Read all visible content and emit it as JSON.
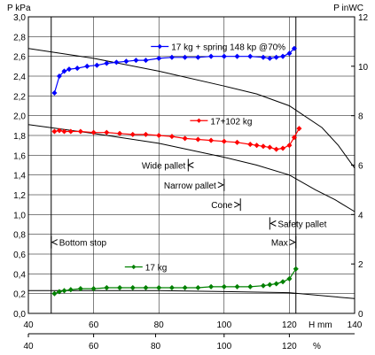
{
  "chart_data": {
    "type": "line",
    "left_axis": {
      "label": "P  kPa",
      "ylim": [
        0,
        3.0
      ],
      "ticks": [
        "0,0",
        "0,2",
        "0,4",
        "0,6",
        "0,8",
        "1,0",
        "1,2",
        "1,4",
        "1,6",
        "1,8",
        "2,0",
        "2,2",
        "2,4",
        "2,6",
        "2,8",
        "3,0"
      ]
    },
    "right_axis": {
      "label": "P inWC",
      "ylim": [
        0,
        12
      ],
      "ticks": [
        "0",
        "2",
        "4",
        "6",
        "8",
        "10",
        "12"
      ]
    },
    "x_axis_top": {
      "label": "H mm",
      "xlim": [
        40,
        140
      ],
      "ticks": [
        "40",
        "60",
        "80",
        "100",
        "120",
        "140"
      ]
    },
    "x_axis_bottom": {
      "label": "%",
      "ticks": [
        {
          "text": "40",
          "h": 40
        },
        {
          "text": "60",
          "h": 60
        },
        {
          "text": "80",
          "h": 79
        },
        {
          "text": "100",
          "h": 100
        },
        {
          "text": "120",
          "h": 120
        }
      ]
    },
    "grid": true,
    "legend_style": "inline labels next to series",
    "vlines": [
      {
        "name": "bottom-stop-line",
        "h": 47
      },
      {
        "name": "max-line",
        "h": 122
      }
    ],
    "series": [
      {
        "name": "17 kg + spring 148 kp @70%",
        "color": "#0000ff",
        "legend_h": 83,
        "legend_p": 2.7,
        "x": [
          48,
          49.5,
          51,
          52.5,
          55,
          58,
          61,
          64,
          67,
          70,
          73,
          76,
          80,
          84,
          88,
          92,
          96,
          100,
          104,
          108,
          112,
          114,
          116,
          118,
          120,
          121.5
        ],
        "y": [
          2.23,
          2.4,
          2.45,
          2.47,
          2.48,
          2.5,
          2.51,
          2.53,
          2.54,
          2.55,
          2.56,
          2.56,
          2.58,
          2.59,
          2.59,
          2.59,
          2.6,
          2.6,
          2.6,
          2.6,
          2.59,
          2.58,
          2.59,
          2.6,
          2.63,
          2.68
        ]
      },
      {
        "name": "17+102 kg",
        "color": "#ff0000",
        "legend_h": 95,
        "legend_p": 1.95,
        "x": [
          48,
          49.5,
          51,
          53,
          56,
          60,
          64,
          68,
          72,
          76,
          80,
          84,
          88,
          92,
          96,
          100,
          104,
          108,
          110,
          112,
          114,
          116,
          118,
          120,
          121.5,
          123
        ],
        "y": [
          1.84,
          1.85,
          1.84,
          1.84,
          1.84,
          1.83,
          1.83,
          1.82,
          1.81,
          1.81,
          1.8,
          1.79,
          1.77,
          1.76,
          1.75,
          1.74,
          1.73,
          1.71,
          1.7,
          1.69,
          1.68,
          1.66,
          1.67,
          1.7,
          1.78,
          1.87
        ]
      },
      {
        "name": "17 kg",
        "color": "#008000",
        "legend_h": 75,
        "legend_p": 0.47,
        "x": [
          48,
          49.5,
          51,
          53,
          56,
          60,
          64,
          68,
          72,
          76,
          80,
          84,
          88,
          92,
          96,
          100,
          104,
          108,
          112,
          114,
          116,
          118,
          120,
          122
        ],
        "y": [
          0.2,
          0.22,
          0.23,
          0.24,
          0.25,
          0.25,
          0.26,
          0.26,
          0.26,
          0.26,
          0.26,
          0.26,
          0.26,
          0.26,
          0.27,
          0.27,
          0.27,
          0.27,
          0.28,
          0.29,
          0.3,
          0.32,
          0.35,
          0.45
        ]
      }
    ],
    "fan_curves": [
      {
        "x": [
          40,
          60,
          80,
          100,
          110,
          120,
          130,
          135,
          140
        ],
        "y": [
          2.68,
          2.58,
          2.45,
          2.3,
          2.22,
          2.1,
          1.88,
          1.7,
          1.47
        ]
      },
      {
        "x": [
          40,
          60,
          80,
          100,
          110,
          120,
          128,
          134,
          140
        ],
        "y": [
          1.91,
          1.82,
          1.72,
          1.58,
          1.5,
          1.4,
          1.25,
          1.15,
          1.03
        ]
      },
      {
        "x": [
          40,
          60,
          80,
          100,
          120,
          140
        ],
        "y": [
          0.23,
          0.23,
          0.23,
          0.22,
          0.21,
          0.15
        ]
      }
    ],
    "annotations": [
      {
        "name": "wide-pallet",
        "text": "Wide pallet",
        "h_start": 89,
        "h_end": 89,
        "p": 1.5,
        "arrow": "left",
        "anchor": "end"
      },
      {
        "name": "narrow-pallet",
        "text": "Narrow pallet",
        "h_start": 100,
        "h_end": 100,
        "p": 1.3,
        "arrow": "right",
        "anchor": "end"
      },
      {
        "name": "cone",
        "text": "Cone",
        "h_start": 105,
        "h_end": 105,
        "p": 1.1,
        "arrow": "right",
        "anchor": "end"
      },
      {
        "name": "safety-pallet",
        "text": "Safety pallet",
        "h_start": 114,
        "h_end": 114,
        "p": 0.91,
        "arrow": "left",
        "anchor": "start"
      },
      {
        "name": "bottom-stop",
        "text": "Bottom stop",
        "h_start": 47,
        "h_end": 47,
        "p": 0.72,
        "arrow": "left",
        "anchor": "start"
      },
      {
        "name": "max",
        "text": "Max",
        "h_start": 122,
        "h_end": 122,
        "p": 0.72,
        "arrow": "right",
        "anchor": "end"
      }
    ]
  }
}
